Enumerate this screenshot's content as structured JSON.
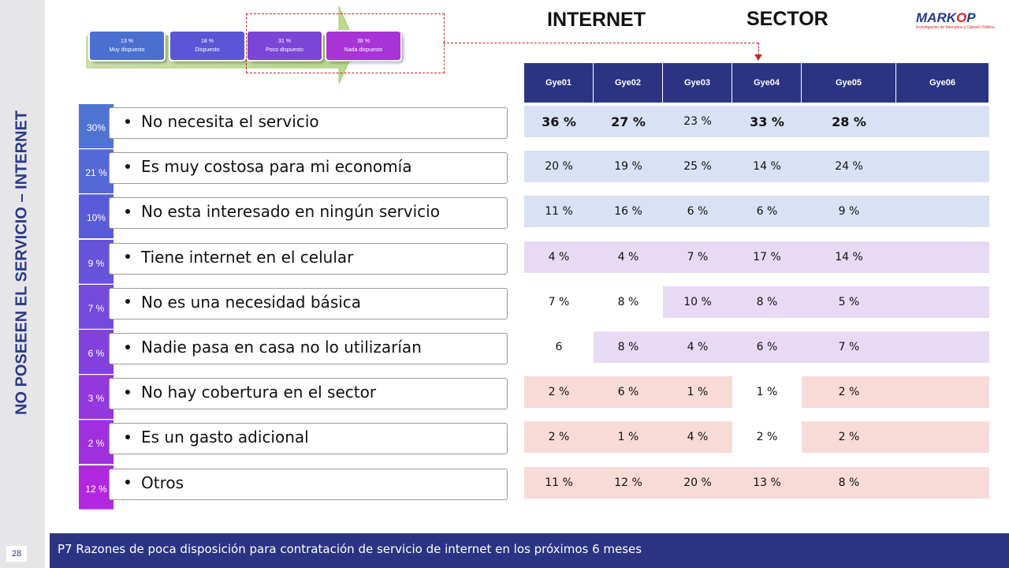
{
  "slide": {
    "vertical_title": "NO POSEEEN EL SERVICIO – INTERNET",
    "page_number": "28",
    "footer_text": "P7 Razones de poca disposición para contratación de servicio de internet en los próximos 6 meses",
    "header_internet": "INTERNET",
    "header_sector": "SECTOR"
  },
  "logo": {
    "word_left": "MARK",
    "word_o": "O",
    "word_right": "P",
    "tagline": "Investigación de Mercados y Opinión Pública"
  },
  "disposition": [
    {
      "pct": "13 %",
      "label": "Muy dispuesto",
      "color": "#4a6fd1"
    },
    {
      "pct": "18 %",
      "label": "Dispuesto",
      "color": "#5a56d6"
    },
    {
      "pct": "31 %",
      "label": "Poco dispuesto",
      "color": "#7b45d8"
    },
    {
      "pct": "38 %",
      "label": "Nada dispuesto",
      "color": "#a833d6"
    }
  ],
  "reasons": [
    {
      "pct": "30%",
      "text": "No necesita  el servicio"
    },
    {
      "pct": "21 %",
      "text": "Es muy costosa para mi economía"
    },
    {
      "pct": "10%",
      "text": "No esta interesado en ningún servicio"
    },
    {
      "pct": "9 %",
      "text": "Tiene internet en el celular"
    },
    {
      "pct": "7 %",
      "text": "No es una necesidad básica"
    },
    {
      "pct": "6 %",
      "text": "Nadie pasa en casa no lo utilizarían"
    },
    {
      "pct": "3 %",
      "text": "No hay cobertura en el sector"
    },
    {
      "pct": "2 %",
      "text": "Es un gasto adicional"
    },
    {
      "pct": "12 %",
      "text": "Otros"
    }
  ],
  "sector_table": {
    "columns": [
      "Gye01",
      "Gye02",
      "Gye03",
      "Gye04",
      "Gye05",
      "Gye06"
    ],
    "rows": [
      [
        "36 %",
        "27 %",
        "23 %",
        "33 %",
        "28 %",
        ""
      ],
      [
        "20 %",
        "19 %",
        "25 %",
        "14 %",
        "24 %",
        ""
      ],
      [
        "11 %",
        "16 %",
        "6 %",
        "6 %",
        "9 %",
        ""
      ],
      [
        "4 %",
        "4 %",
        "7 %",
        "17 %",
        "14 %",
        ""
      ],
      [
        "7 %",
        "8 %",
        "10 %",
        "8 %",
        "5 %",
        ""
      ],
      [
        "6",
        "8 %",
        "4 %",
        "6 %",
        "7 %",
        ""
      ],
      [
        "2 %",
        "6 %",
        "1 %",
        "1 %",
        "2 %",
        ""
      ],
      [
        "2 %",
        "1 %",
        "4 %",
        "2 %",
        "2 %",
        ""
      ],
      [
        "11 %",
        "12 %",
        "20 %",
        "13 %",
        "8 %",
        ""
      ]
    ]
  },
  "colors": {
    "navy": "#2b3482",
    "row_blue": "#d9e1f4",
    "row_lilac": "#e8daf5",
    "row_peach": "#f8dad6",
    "accent_red": "#c0282d"
  }
}
